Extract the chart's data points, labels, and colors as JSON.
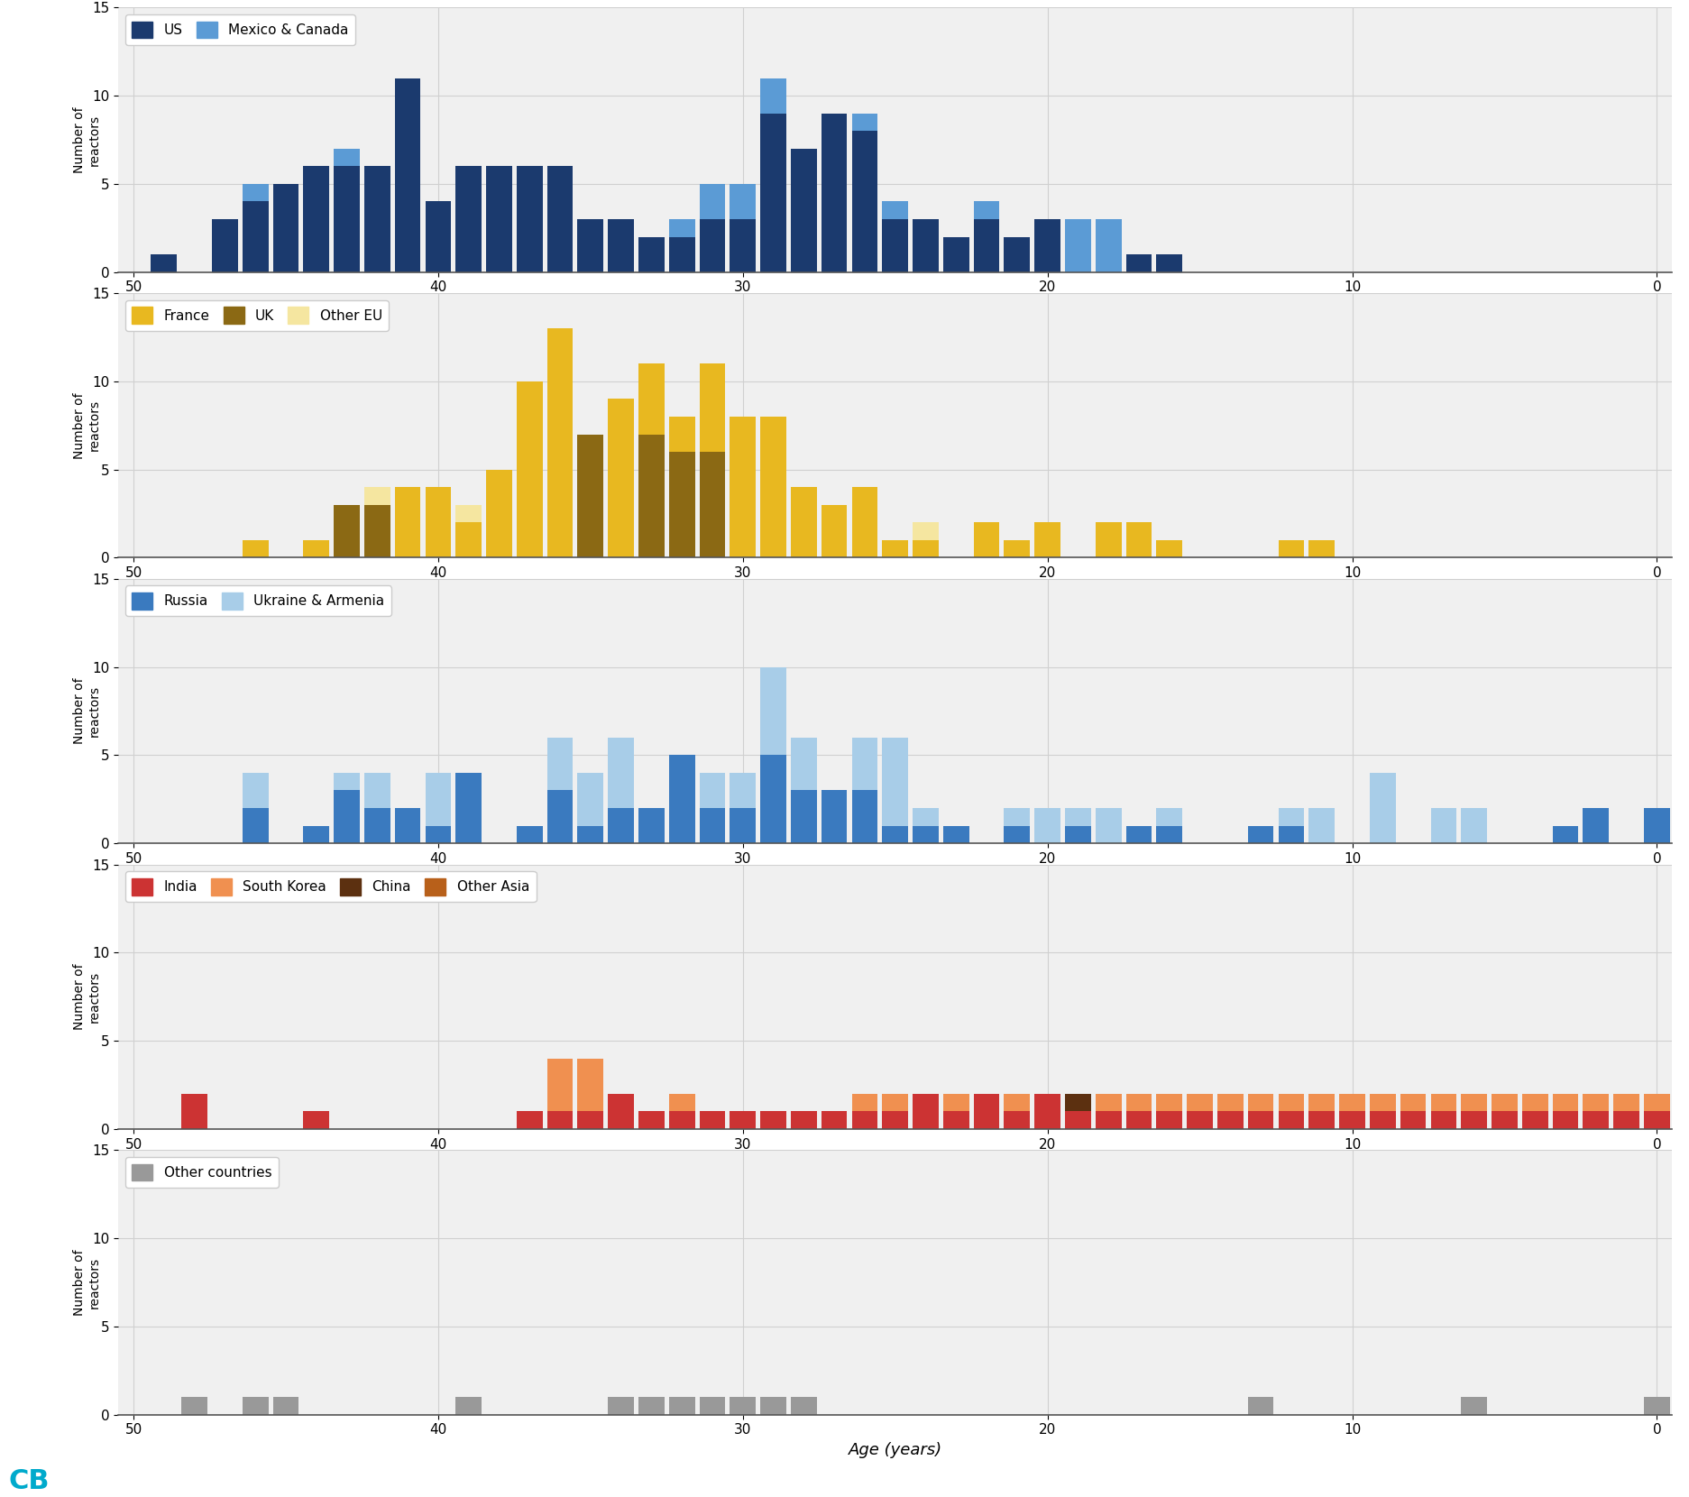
{
  "panels": [
    {
      "series": [
        {
          "label": "Mexico & Canada",
          "color": "#5b9bd5",
          "data": {
            "49": 0,
            "48": 0,
            "47": 0,
            "46": 5,
            "45": 0,
            "44": 0,
            "43": 7,
            "42": 0,
            "41": 0,
            "40": 4,
            "39": 0,
            "38": 0,
            "37": 0,
            "36": 6,
            "35": 0,
            "34": 0,
            "33": 0,
            "32": 3,
            "31": 5,
            "30": 5,
            "29": 11,
            "28": 0,
            "27": 0,
            "26": 9,
            "25": 4,
            "24": 0,
            "23": 0,
            "22": 4,
            "21": 0,
            "20": 3,
            "19": 3,
            "18": 3,
            "17": 0,
            "16": 0,
            "15": 0,
            "14": 0,
            "13": 0,
            "12": 0,
            "11": 0,
            "10": 0,
            "9": 0,
            "8": 0,
            "7": 0,
            "6": 0,
            "5": 0,
            "4": 0,
            "3": 0,
            "2": 0,
            "1": 0,
            "0": 0
          }
        },
        {
          "label": "US",
          "color": "#1b3a6e",
          "data": {
            "49": 1,
            "48": 0,
            "47": 3,
            "46": 4,
            "45": 5,
            "44": 6,
            "43": 6,
            "42": 6,
            "41": 11,
            "40": 4,
            "39": 6,
            "38": 6,
            "37": 6,
            "36": 6,
            "35": 3,
            "34": 3,
            "33": 2,
            "32": 2,
            "31": 3,
            "30": 3,
            "29": 9,
            "28": 7,
            "27": 9,
            "26": 8,
            "25": 3,
            "24": 3,
            "23": 2,
            "22": 3,
            "21": 2,
            "20": 3,
            "19": 0,
            "18": 0,
            "17": 1,
            "16": 1,
            "15": 0,
            "14": 0,
            "13": 0,
            "12": 0,
            "11": 0,
            "10": 0,
            "9": 0,
            "8": 0,
            "7": 0,
            "6": 0,
            "5": 0,
            "4": 0,
            "3": 0,
            "2": 0,
            "1": 0,
            "0": 0
          }
        }
      ],
      "legend_labels": [
        "US",
        "Mexico & Canada"
      ],
      "legend_colors": [
        "#1b3a6e",
        "#5b9bd5"
      ]
    },
    {
      "series": [
        {
          "label": "Other EU",
          "color": "#f5e6a0",
          "data": {
            "49": 0,
            "48": 0,
            "47": 0,
            "46": 0,
            "45": 0,
            "44": 0,
            "43": 0,
            "42": 4,
            "41": 4,
            "40": 4,
            "39": 3,
            "38": 4,
            "37": 4,
            "36": 4,
            "35": 5,
            "34": 5,
            "33": 5,
            "32": 3,
            "31": 4,
            "30": 4,
            "29": 4,
            "28": 4,
            "27": 3,
            "26": 4,
            "25": 0,
            "24": 2,
            "23": 0,
            "22": 2,
            "21": 1,
            "20": 2,
            "19": 0,
            "18": 1,
            "17": 2,
            "16": 1,
            "15": 0,
            "14": 0,
            "13": 0,
            "12": 0,
            "11": 0,
            "10": 0,
            "9": 0,
            "8": 0,
            "7": 0,
            "6": 0,
            "5": 0,
            "4": 0,
            "3": 0,
            "2": 0,
            "1": 0,
            "0": 0
          }
        },
        {
          "label": "France",
          "color": "#e8b820",
          "data": {
            "49": 0,
            "48": 0,
            "47": 0,
            "46": 1,
            "45": 0,
            "44": 1,
            "43": 3,
            "42": 3,
            "41": 4,
            "40": 4,
            "39": 2,
            "38": 5,
            "37": 10,
            "36": 13,
            "35": 4,
            "34": 9,
            "33": 11,
            "32": 8,
            "31": 11,
            "30": 8,
            "29": 8,
            "28": 4,
            "27": 3,
            "26": 4,
            "25": 1,
            "24": 1,
            "23": 0,
            "22": 2,
            "21": 1,
            "20": 2,
            "19": 0,
            "18": 2,
            "17": 2,
            "16": 1,
            "15": 0,
            "14": 0,
            "13": 0,
            "12": 1,
            "11": 1,
            "10": 0,
            "9": 0,
            "8": 0,
            "7": 0,
            "6": 0,
            "5": 0,
            "4": 0,
            "3": 0,
            "2": 0,
            "1": 0,
            "0": 0
          }
        },
        {
          "label": "UK",
          "color": "#8b6914",
          "data": {
            "49": 0,
            "48": 0,
            "47": 0,
            "46": 0,
            "45": 0,
            "44": 0,
            "43": 3,
            "42": 3,
            "41": 0,
            "40": 0,
            "39": 0,
            "38": 0,
            "37": 0,
            "36": 0,
            "35": 7,
            "34": 0,
            "33": 7,
            "32": 6,
            "31": 6,
            "30": 0,
            "29": 0,
            "28": 0,
            "27": 0,
            "26": 0,
            "25": 0,
            "24": 0,
            "23": 0,
            "22": 0,
            "21": 0,
            "20": 0,
            "19": 0,
            "18": 0,
            "17": 0,
            "16": 0,
            "15": 0,
            "14": 0,
            "13": 0,
            "12": 0,
            "11": 0,
            "10": 0,
            "9": 0,
            "8": 0,
            "7": 0,
            "6": 0,
            "5": 0,
            "4": 0,
            "3": 0,
            "2": 0,
            "1": 0,
            "0": 0
          }
        }
      ],
      "legend_labels": [
        "France",
        "UK",
        "Other EU"
      ],
      "legend_colors": [
        "#e8b820",
        "#8b6914",
        "#f5e6a0"
      ]
    },
    {
      "series": [
        {
          "label": "Ukraine & Armenia",
          "color": "#a8cde8",
          "data": {
            "49": 0,
            "48": 0,
            "47": 0,
            "46": 4,
            "45": 0,
            "44": 0,
            "43": 4,
            "42": 4,
            "41": 0,
            "40": 4,
            "39": 0,
            "38": 0,
            "37": 1,
            "36": 6,
            "35": 4,
            "34": 6,
            "33": 2,
            "32": 2,
            "31": 4,
            "30": 4,
            "29": 10,
            "28": 6,
            "27": 3,
            "26": 6,
            "25": 6,
            "24": 2,
            "23": 0,
            "22": 0,
            "21": 2,
            "20": 2,
            "19": 2,
            "18": 2,
            "17": 0,
            "16": 2,
            "15": 0,
            "14": 0,
            "13": 0,
            "12": 2,
            "11": 2,
            "10": 0,
            "9": 4,
            "8": 0,
            "7": 2,
            "6": 2,
            "5": 0,
            "4": 0,
            "3": 0,
            "2": 2,
            "1": 0,
            "0": 2
          }
        },
        {
          "label": "Russia",
          "color": "#3a7abf",
          "data": {
            "49": 0,
            "48": 0,
            "47": 0,
            "46": 2,
            "45": 0,
            "44": 1,
            "43": 3,
            "42": 2,
            "41": 2,
            "40": 1,
            "39": 4,
            "38": 0,
            "37": 1,
            "36": 3,
            "35": 1,
            "34": 2,
            "33": 2,
            "32": 5,
            "31": 2,
            "30": 2,
            "29": 5,
            "28": 3,
            "27": 3,
            "26": 3,
            "25": 1,
            "24": 1,
            "23": 1,
            "22": 0,
            "21": 1,
            "20": 0,
            "19": 1,
            "18": 0,
            "17": 1,
            "16": 1,
            "15": 0,
            "14": 0,
            "13": 1,
            "12": 1,
            "11": 0,
            "10": 0,
            "9": 0,
            "8": 0,
            "7": 0,
            "6": 0,
            "5": 0,
            "4": 0,
            "3": 1,
            "2": 2,
            "1": 0,
            "0": 2
          }
        }
      ],
      "legend_labels": [
        "Russia",
        "Ukraine & Armenia"
      ],
      "legend_colors": [
        "#3a7abf",
        "#a8cde8"
      ]
    },
    {
      "series": [
        {
          "label": "Other Asia",
          "color": "#b8601a",
          "data": {
            "49": 0,
            "48": 0,
            "47": 0,
            "46": 0,
            "45": 0,
            "44": 0,
            "43": 0,
            "42": 0,
            "41": 0,
            "40": 0,
            "39": 0,
            "38": 0,
            "37": 0,
            "36": 0,
            "35": 0,
            "34": 0,
            "33": 0,
            "32": 0,
            "31": 0,
            "30": 0,
            "29": 0,
            "28": 0,
            "27": 0,
            "26": 0,
            "25": 0,
            "24": 0,
            "23": 0,
            "22": 0,
            "21": 0,
            "20": 0,
            "19": 0,
            "18": 0,
            "17": 0,
            "16": 0,
            "15": 0,
            "14": 0,
            "13": 0,
            "12": 0,
            "11": 0,
            "10": 0,
            "9": 1,
            "8": 1,
            "7": 1,
            "6": 1,
            "5": 1,
            "4": 1,
            "3": 1,
            "2": 2,
            "1": 1,
            "0": 1
          }
        },
        {
          "label": "China",
          "color": "#5c3010",
          "data": {
            "49": 0,
            "48": 0,
            "47": 0,
            "46": 0,
            "45": 0,
            "44": 0,
            "43": 0,
            "42": 0,
            "41": 0,
            "40": 0,
            "39": 0,
            "38": 0,
            "37": 0,
            "36": 0,
            "35": 0,
            "34": 0,
            "33": 0,
            "32": 0,
            "31": 0,
            "30": 0,
            "29": 0,
            "28": 0,
            "27": 1,
            "26": 1,
            "25": 1,
            "24": 1,
            "23": 1,
            "22": 1,
            "21": 1,
            "20": 1,
            "19": 2,
            "18": 2,
            "17": 2,
            "16": 2,
            "15": 2,
            "14": 2,
            "13": 2,
            "12": 2,
            "11": 2,
            "10": 2,
            "9": 2,
            "8": 2,
            "7": 2,
            "6": 2,
            "5": 2,
            "4": 2,
            "3": 2,
            "2": 2,
            "1": 2,
            "0": 2
          }
        },
        {
          "label": "South Korea",
          "color": "#f09050",
          "data": {
            "49": 0,
            "48": 0,
            "47": 0,
            "46": 0,
            "45": 0,
            "44": 0,
            "43": 0,
            "42": 0,
            "41": 0,
            "40": 0,
            "39": 0,
            "38": 0,
            "37": 0,
            "36": 4,
            "35": 4,
            "34": 1,
            "33": 1,
            "32": 2,
            "31": 1,
            "30": 1,
            "29": 1,
            "28": 1,
            "27": 1,
            "26": 2,
            "25": 2,
            "24": 2,
            "23": 2,
            "22": 2,
            "21": 2,
            "20": 2,
            "19": 1,
            "18": 2,
            "17": 2,
            "16": 2,
            "15": 2,
            "14": 2,
            "13": 2,
            "12": 2,
            "11": 2,
            "10": 2,
            "9": 2,
            "8": 2,
            "7": 2,
            "6": 2,
            "5": 2,
            "4": 2,
            "3": 2,
            "2": 2,
            "1": 2,
            "0": 2
          }
        },
        {
          "label": "India",
          "color": "#cc3333",
          "data": {
            "49": 0,
            "48": 2,
            "47": 0,
            "46": 0,
            "45": 0,
            "44": 1,
            "43": 0,
            "42": 0,
            "41": 0,
            "40": 0,
            "39": 0,
            "38": 0,
            "37": 1,
            "36": 1,
            "35": 1,
            "34": 2,
            "33": 1,
            "32": 1,
            "31": 1,
            "30": 1,
            "29": 1,
            "28": 1,
            "27": 1,
            "26": 1,
            "25": 1,
            "24": 2,
            "23": 1,
            "22": 2,
            "21": 1,
            "20": 2,
            "19": 1,
            "18": 1,
            "17": 1,
            "16": 1,
            "15": 1,
            "14": 1,
            "13": 1,
            "12": 1,
            "11": 1,
            "10": 1,
            "9": 1,
            "8": 1,
            "7": 1,
            "6": 1,
            "5": 1,
            "4": 1,
            "3": 1,
            "2": 1,
            "1": 1,
            "0": 1
          }
        }
      ],
      "legend_labels": [
        "India",
        "South Korea",
        "China",
        "Other Asia"
      ],
      "legend_colors": [
        "#cc3333",
        "#f09050",
        "#5c3010",
        "#b8601a"
      ]
    },
    {
      "series": [
        {
          "label": "Other countries",
          "color": "#999999",
          "data": {
            "49": 0,
            "48": 1,
            "47": 0,
            "46": 1,
            "45": 1,
            "44": 0,
            "43": 0,
            "42": 0,
            "41": 0,
            "40": 0,
            "39": 1,
            "38": 0,
            "37": 0,
            "36": 0,
            "35": 0,
            "34": 1,
            "33": 1,
            "32": 1,
            "31": 1,
            "30": 1,
            "29": 1,
            "28": 1,
            "27": 0,
            "26": 0,
            "25": 0,
            "24": 0,
            "23": 0,
            "22": 0,
            "21": 0,
            "20": 0,
            "19": 0,
            "18": 0,
            "17": 0,
            "16": 0,
            "15": 0,
            "14": 0,
            "13": 1,
            "12": 0,
            "11": 0,
            "10": 0,
            "9": 0,
            "8": 0,
            "7": 0,
            "6": 1,
            "5": 0,
            "4": 0,
            "3": 0,
            "2": 0,
            "1": 0,
            "0": 1
          }
        }
      ],
      "legend_labels": [
        "Other countries"
      ],
      "legend_colors": [
        "#999999"
      ]
    }
  ],
  "ylim": [
    0,
    15
  ],
  "yticks": [
    0,
    5,
    10,
    15
  ],
  "xlim_left": 50.5,
  "xlim_right": -0.5,
  "xticks": [
    50,
    40,
    30,
    20,
    10,
    0
  ],
  "xlabel": "Age (years)",
  "ylabel": "Number of\nreactors",
  "panel_bg": "#f0f0f0",
  "grid_color": "#d0d0d0",
  "bar_width": 0.85,
  "fig_width": 18.73,
  "fig_height": 16.6,
  "cb_color": "#00aacc",
  "cb_text": "CB",
  "legend_fontsize": 11,
  "tick_fontsize": 11,
  "ylabel_fontsize": 10
}
